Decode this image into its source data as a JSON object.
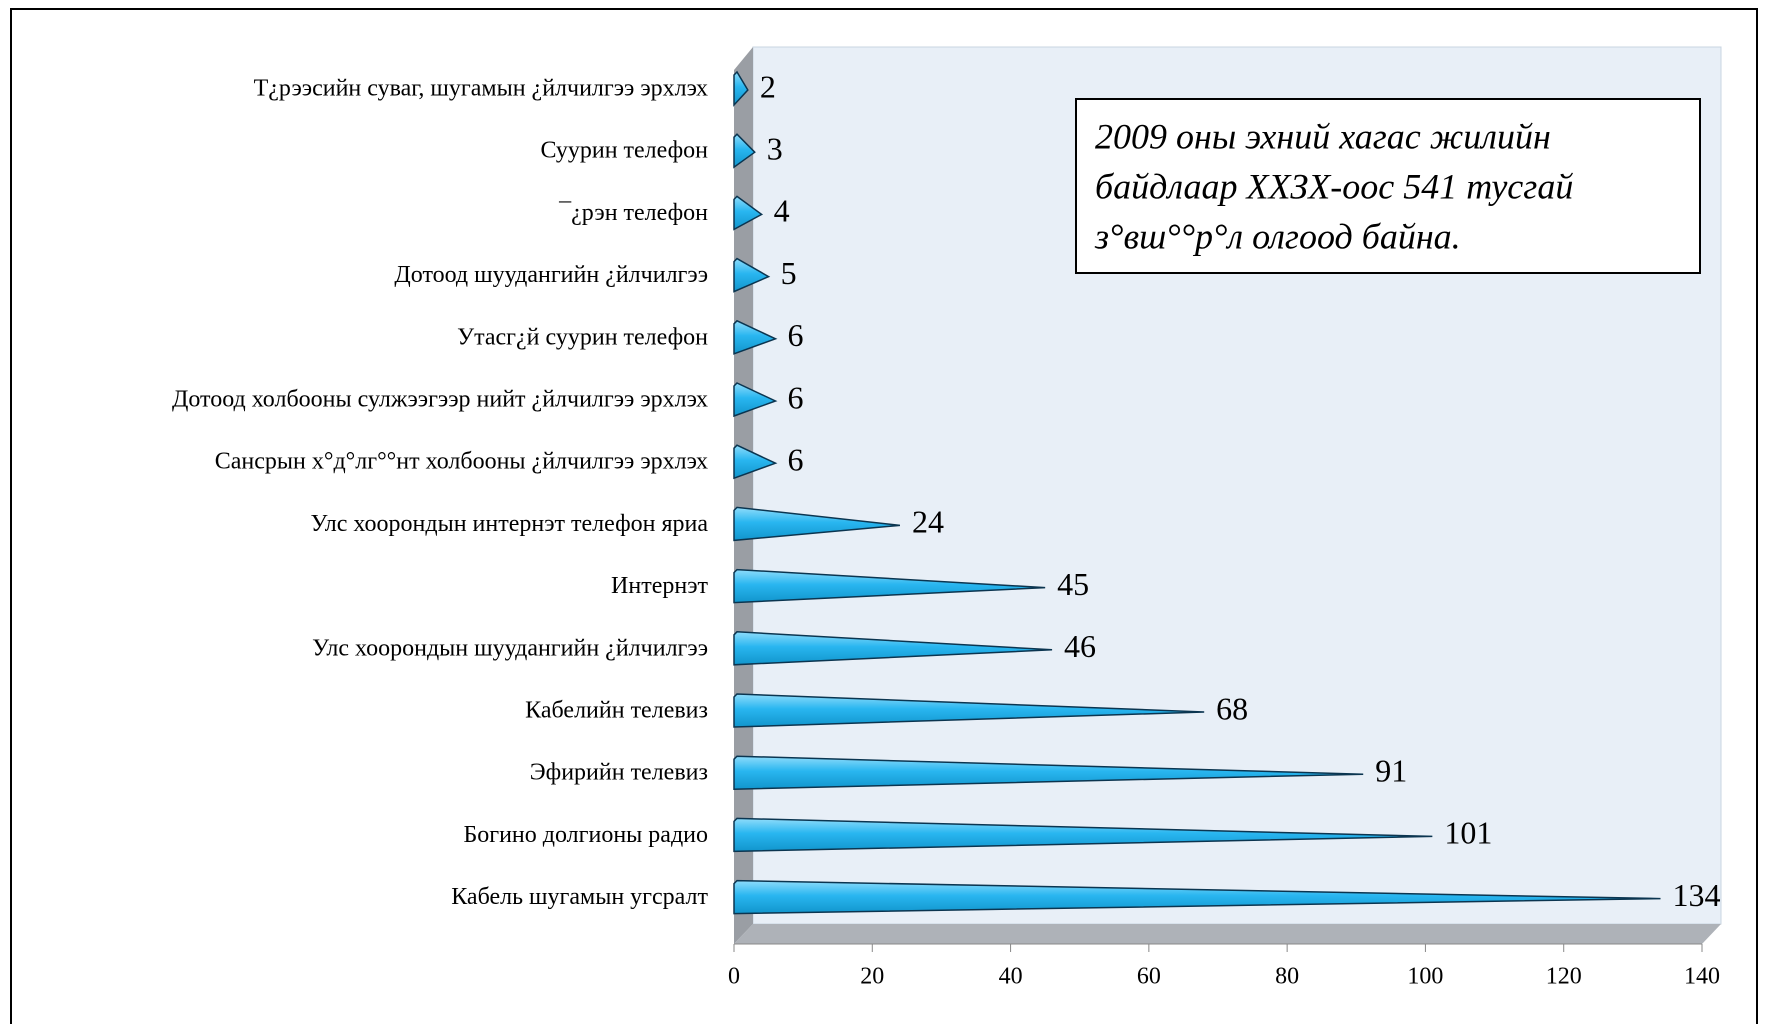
{
  "chart_data": {
    "type": "bar",
    "orientation": "horizontal",
    "categories": [
      "Т¿рээсийн суваг, шугамын ¿йлчилгээ эрхлэх",
      "Суурин телефон",
      "¯¿рэн телефон",
      "Дотоод шуудангийн ¿йлчилгээ",
      "Утасг¿й суурин телефон",
      "Дотоод холбооны сулжээгээр нийт ¿йлчилгээ эрхлэх",
      "Сансрын х°д°лг°°нт холбооны ¿йлчилгээ эрхлэх",
      "Улс хоорондын интернэт телефон яриа",
      "Интернэт",
      "Улс хоорондын шуудангийн ¿йлчилгээ",
      "Кабелийн телевиз",
      "Эфирийн телевиз",
      "Богино долгионы радио",
      "Кабель шугамын угсралт"
    ],
    "values": [
      2,
      3,
      4,
      5,
      6,
      6,
      6,
      24,
      45,
      46,
      68,
      91,
      101,
      134
    ],
    "color": "#29b6f0",
    "xlim": [
      0,
      140
    ],
    "xticks": [
      0,
      20,
      40,
      60,
      80,
      100,
      120,
      140
    ],
    "annotation": [
      "2009 оны эхний хагас жилийн",
      "байдлаар ХХЗХ-оос 541 тусгай",
      "з°вш°°р°л олгоод байна."
    ]
  }
}
